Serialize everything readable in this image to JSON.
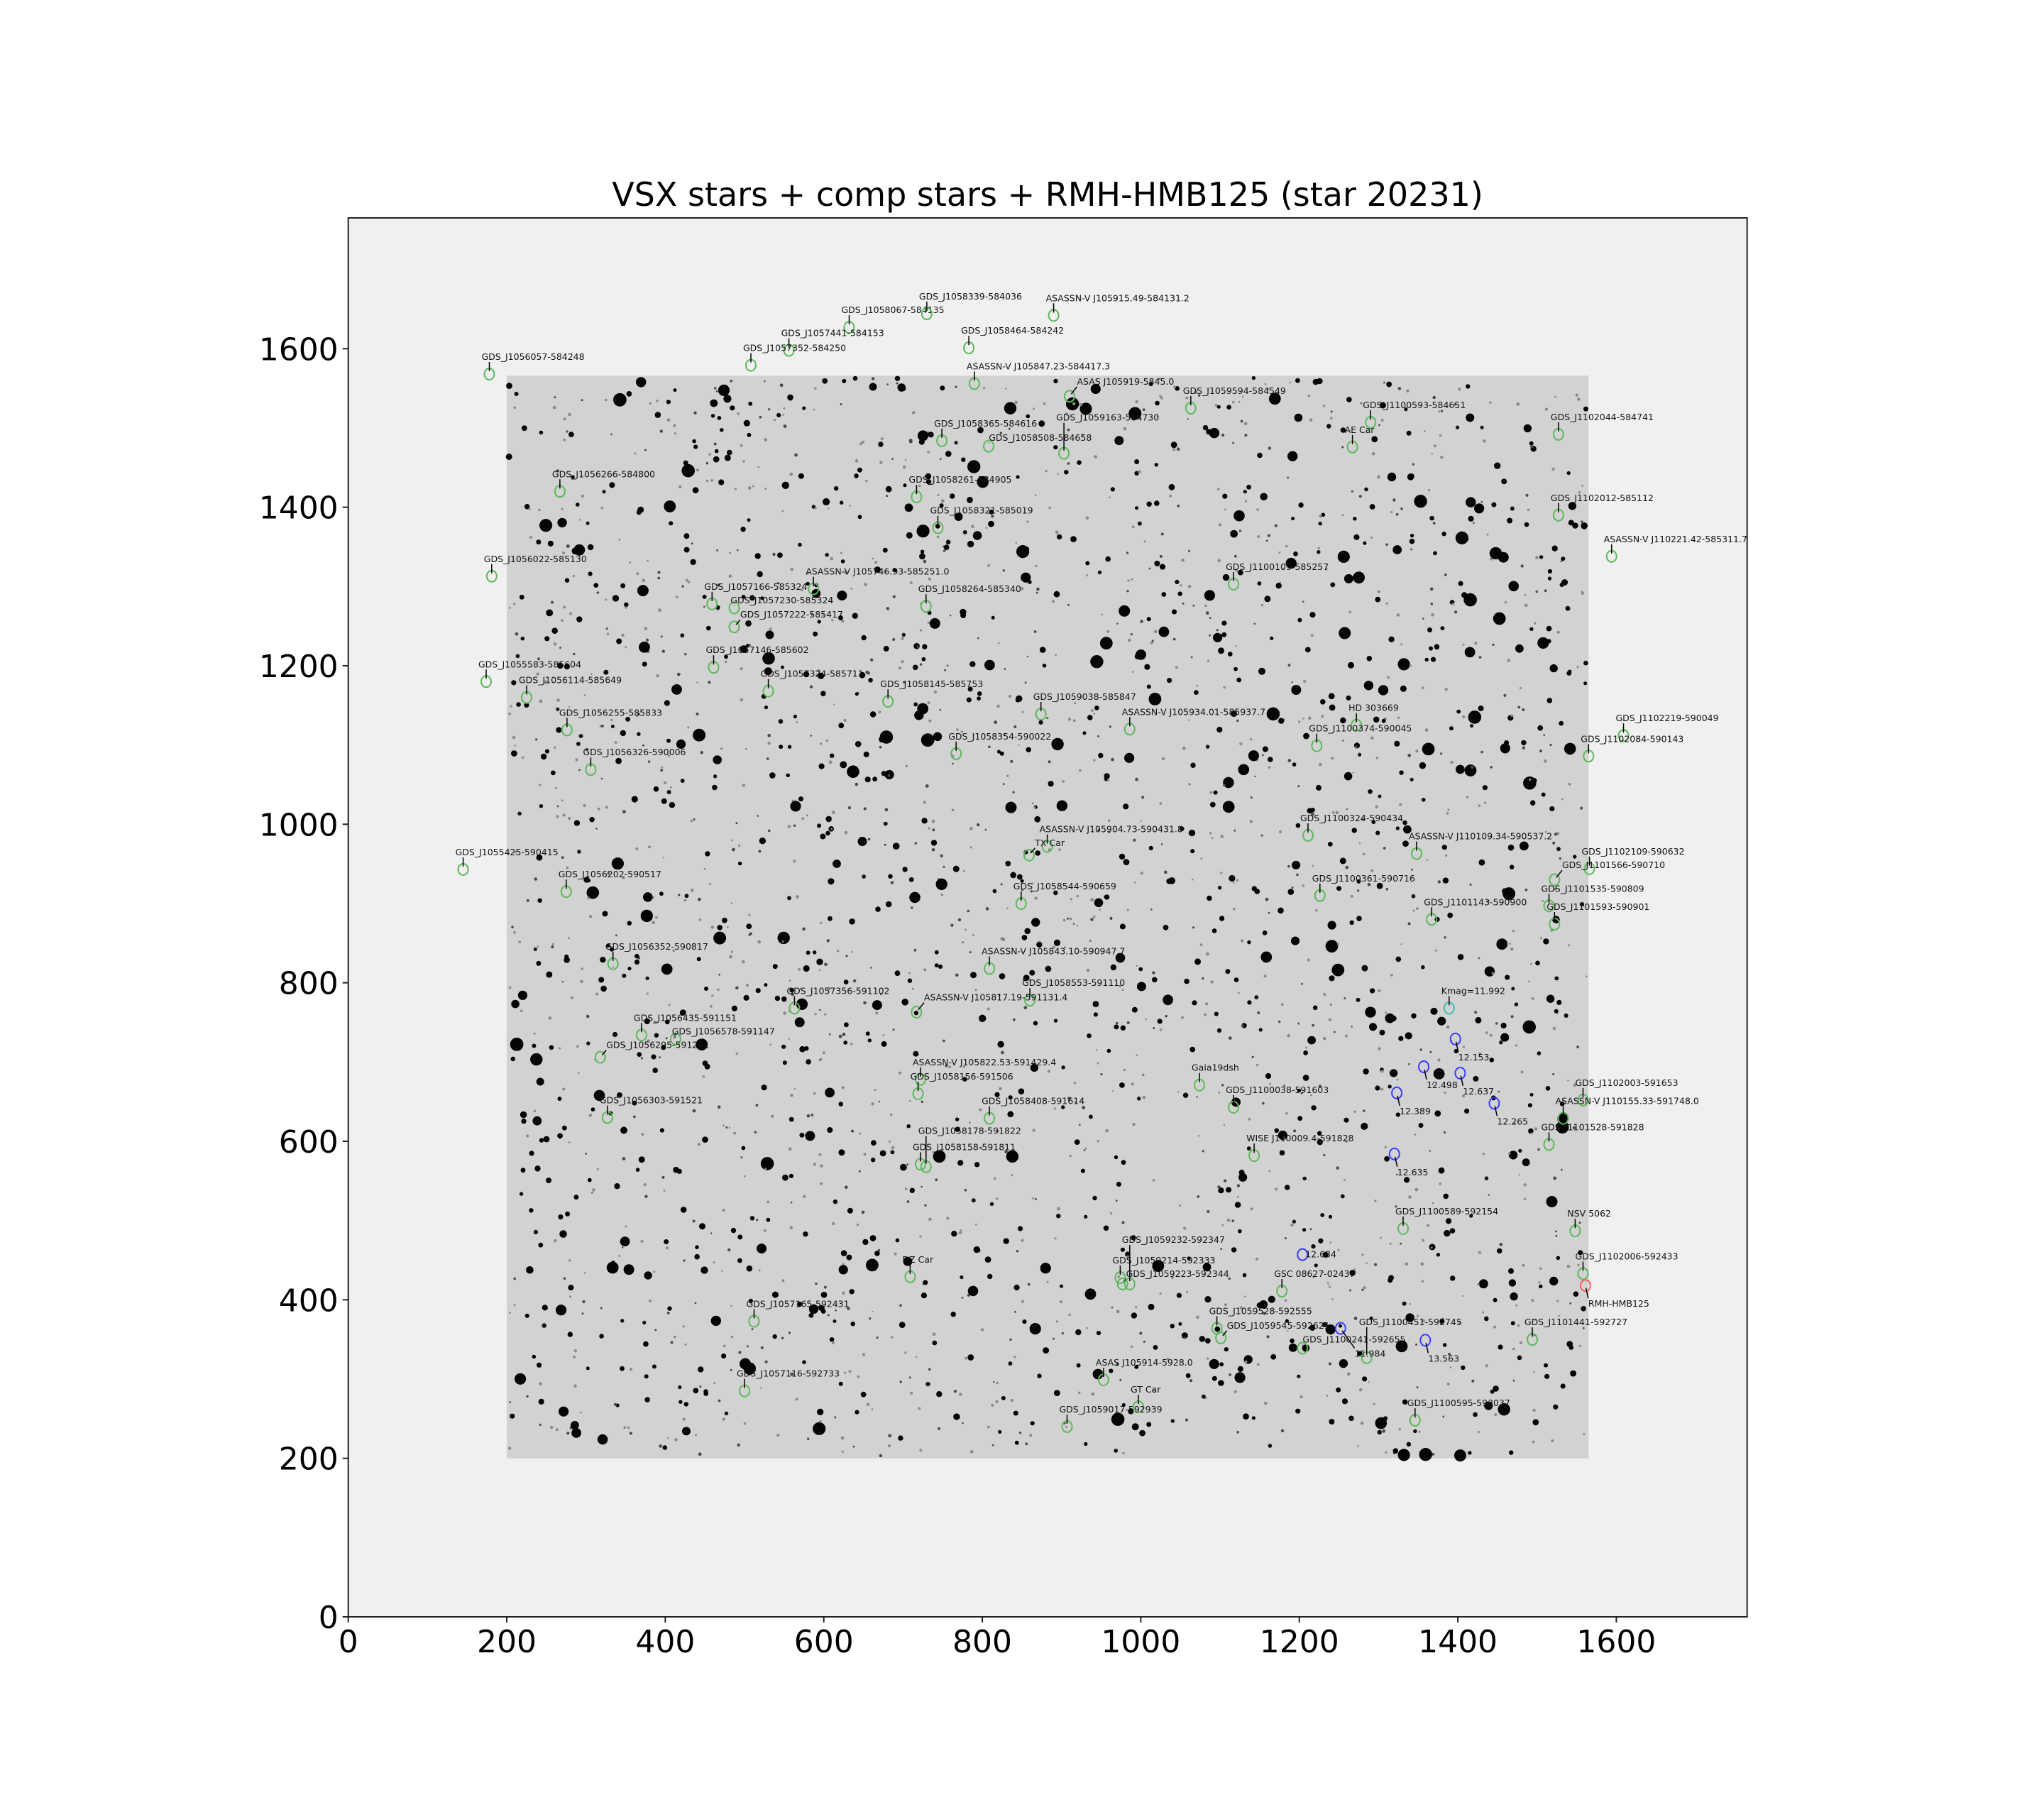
{
  "chart_data": {
    "type": "scatter",
    "title": "VSX stars + comp stars + RMH-HMB125 (star 20231)",
    "xlabel": "",
    "ylabel": "",
    "xlim": [
      0,
      1765
    ],
    "ylim": [
      0,
      1765
    ],
    "xticks": [
      0,
      200,
      400,
      600,
      800,
      1000,
      1200,
      1400,
      1600
    ],
    "yticks": [
      0,
      200,
      400,
      600,
      800,
      1000,
      1200,
      1400,
      1600
    ],
    "grid": false,
    "image_extent": [
      200,
      1565,
      200,
      1566
    ],
    "colors": {
      "vsx": "#5cb85c",
      "comp": "#3b3bff",
      "check": "#3fb8b8",
      "target": "#ff5a5a",
      "axes_bg": "#f0f0f0",
      "image_bg": "#d2d2d2"
    },
    "annotations": [
      {
        "label": "GDS_J1058067-584135",
        "x": 632,
        "y": 1627,
        "kind": "vsx"
      },
      {
        "label": "GDS_J1058339-584036",
        "x": 730,
        "y": 1644,
        "kind": "vsx"
      },
      {
        "label": "ASASSN-V J105915.49-584131.2",
        "x": 890,
        "y": 1642,
        "kind": "vsx"
      },
      {
        "label": "GDS_J1058464-584242",
        "x": 783,
        "y": 1601,
        "kind": "vsx"
      },
      {
        "label": "GDS_J1057441-584153",
        "x": 556,
        "y": 1598,
        "kind": "vsx"
      },
      {
        "label": "GDS_J1057352-584250",
        "x": 508,
        "y": 1579,
        "kind": "vsx"
      },
      {
        "label": "GDS_J1056057-584248",
        "x": 178,
        "y": 1568,
        "kind": "vsx"
      },
      {
        "label": "ASASSN-V J105847.23-584417.3",
        "x": 790,
        "y": 1556,
        "kind": "vsx"
      },
      {
        "label": "ASAS J105919-5845.0",
        "x": 910,
        "y": 1540,
        "kind": "vsx"
      },
      {
        "label": "GDS_J1059594-584549",
        "x": 1063,
        "y": 1525,
        "kind": "vsx"
      },
      {
        "label": "GDS_J1100593-584651",
        "x": 1290,
        "y": 1507,
        "kind": "vsx"
      },
      {
        "label": "GDS_J1102044-584741",
        "x": 1527,
        "y": 1492,
        "kind": "vsx"
      },
      {
        "label": "AE Car",
        "x": 1267,
        "y": 1476,
        "kind": "vsx"
      },
      {
        "label": "GDS_J1058365-584616",
        "x": 749,
        "y": 1484,
        "kind": "vsx"
      },
      {
        "label": "GDS_J1058508-584658",
        "x": 808,
        "y": 1477,
        "kind": "vsx"
      },
      {
        "label": "GDS_J1059163-584730",
        "x": 903,
        "y": 1468,
        "kind": "vsx"
      },
      {
        "label": "GDS_J1056266-584800",
        "x": 267,
        "y": 1420,
        "kind": "vsx"
      },
      {
        "label": "GDS_J1058261-584905",
        "x": 717,
        "y": 1413,
        "kind": "vsx"
      },
      {
        "label": "GDS_J1102012-585112",
        "x": 1527,
        "y": 1390,
        "kind": "vsx"
      },
      {
        "label": "GDS_J1058321-585019",
        "x": 744,
        "y": 1374,
        "kind": "vsx"
      },
      {
        "label": "ASASSN-V J110221.42-585311.7",
        "x": 1594,
        "y": 1338,
        "kind": "vsx"
      },
      {
        "label": "GDS_J1056022-585130",
        "x": 181,
        "y": 1313,
        "kind": "vsx"
      },
      {
        "label": "ASASSN-V J105746.93-585251.0",
        "x": 587,
        "y": 1297,
        "kind": "vsx"
      },
      {
        "label": "GDS_J1100109-585257",
        "x": 1117,
        "y": 1303,
        "kind": "vsx"
      },
      {
        "label": "GDS_J1057166-585324",
        "x": 459,
        "y": 1278,
        "kind": "vsx"
      },
      {
        "label": "GDS_J1057230-585324",
        "x": 487,
        "y": 1273,
        "kind": "vsx"
      },
      {
        "label": "GDS_J1058264-585340",
        "x": 729,
        "y": 1275,
        "kind": "vsx"
      },
      {
        "label": "GDS_J1057222-585417",
        "x": 487,
        "y": 1249,
        "kind": "vsx"
      },
      {
        "label": "GDS_J1057146-585602",
        "x": 461,
        "y": 1198,
        "kind": "vsx"
      },
      {
        "label": "GDS_J1055583-585604",
        "x": 174,
        "y": 1180,
        "kind": "vsx"
      },
      {
        "label": "GDS_J1057324-585711",
        "x": 530,
        "y": 1168,
        "kind": "vsx"
      },
      {
        "label": "GDS_J1056114-585649",
        "x": 225,
        "y": 1160,
        "kind": "vsx"
      },
      {
        "label": "GDS_J1058145-585753",
        "x": 681,
        "y": 1155,
        "kind": "vsx"
      },
      {
        "label": "GDS_J1059038-585847",
        "x": 874,
        "y": 1139,
        "kind": "vsx"
      },
      {
        "label": "ASASSN-V J105934.01-585937.7",
        "x": 986,
        "y": 1120,
        "kind": "vsx"
      },
      {
        "label": "HD 303669",
        "x": 1272,
        "y": 1125,
        "kind": "vsx"
      },
      {
        "label": "GDS_J1056255-585833",
        "x": 276,
        "y": 1119,
        "kind": "vsx"
      },
      {
        "label": "GDS_J1100374-590045",
        "x": 1222,
        "y": 1099,
        "kind": "vsx"
      },
      {
        "label": "GDS_J1102219-590049",
        "x": 1609,
        "y": 1112,
        "kind": "vsx"
      },
      {
        "label": "GDS_J1102084-590143",
        "x": 1565,
        "y": 1086,
        "kind": "vsx"
      },
      {
        "label": "GDS_J1058354-590022",
        "x": 767,
        "y": 1089,
        "kind": "vsx"
      },
      {
        "label": "GDS_J1056326-590006",
        "x": 306,
        "y": 1069,
        "kind": "vsx"
      },
      {
        "label": "GDS_J1100324-590434",
        "x": 1211,
        "y": 986,
        "kind": "vsx"
      },
      {
        "label": "ASASSN-V J105904.73-590431.8",
        "x": 882,
        "y": 972,
        "kind": "vsx"
      },
      {
        "label": "TX Car",
        "x": 859,
        "y": 961,
        "kind": "vsx"
      },
      {
        "label": "ASASSN-V J110109.34-590537.2",
        "x": 1348,
        "y": 963,
        "kind": "vsx"
      },
      {
        "label": "GDS_J1102109-590632",
        "x": 1566,
        "y": 944,
        "kind": "vsx"
      },
      {
        "label": "GDS_J1055425-590415",
        "x": 145,
        "y": 943,
        "kind": "vsx"
      },
      {
        "label": "GDS_J1101566-590710",
        "x": 1522,
        "y": 930,
        "kind": "vsx"
      },
      {
        "label": "GDS_J1056202-590517",
        "x": 275,
        "y": 915,
        "kind": "vsx"
      },
      {
        "label": "GDS_J1100361-590716",
        "x": 1226,
        "y": 910,
        "kind": "vsx"
      },
      {
        "label": "GDS_J1058544-590659",
        "x": 849,
        "y": 900,
        "kind": "vsx"
      },
      {
        "label": "GDS_J1101535-590809",
        "x": 1515,
        "y": 897,
        "kind": "vsx"
      },
      {
        "label": "GDS_J1101143-590900",
        "x": 1367,
        "y": 880,
        "kind": "vsx"
      },
      {
        "label": "GDS_J1101593-590901",
        "x": 1522,
        "y": 874,
        "kind": "vsx"
      },
      {
        "label": "GDS_J1056352-590817",
        "x": 334,
        "y": 824,
        "kind": "vsx"
      },
      {
        "label": "ASASSN-V J105843.10-590947.7",
        "x": 809,
        "y": 818,
        "kind": "vsx"
      },
      {
        "label": "GDS_J1058553-591110",
        "x": 860,
        "y": 778,
        "kind": "vsx"
      },
      {
        "label": "GDS_J1057356-591102",
        "x": 563,
        "y": 768,
        "kind": "vsx"
      },
      {
        "label": "ASASSN-V J105817.19-591131.4",
        "x": 717,
        "y": 763,
        "kind": "vsx"
      },
      {
        "label": "GDS_J1056435-591151",
        "x": 370,
        "y": 734,
        "kind": "vsx"
      },
      {
        "label": "GDS_J1056578-591147",
        "x": 413,
        "y": 729,
        "kind": "vsx"
      },
      {
        "label": "GDS_J1056295-591241",
        "x": 318,
        "y": 706,
        "kind": "vsx"
      },
      {
        "label": "ASASSN-V J105822.53-591429.4",
        "x": 722,
        "y": 678,
        "kind": "vsx"
      },
      {
        "label": "GDS_J1058156-591506",
        "x": 719,
        "y": 660,
        "kind": "vsx"
      },
      {
        "label": "Gaia19dsh",
        "x": 1074,
        "y": 671,
        "kind": "vsx"
      },
      {
        "label": "GDS_J1102003-591653",
        "x": 1558,
        "y": 652,
        "kind": "vsx"
      },
      {
        "label": "GDS_J1100038-591603",
        "x": 1117,
        "y": 643,
        "kind": "vsx"
      },
      {
        "label": "ASASSN-V J110155.33-591748.0",
        "x": 1533,
        "y": 629,
        "kind": "vsx"
      },
      {
        "label": "GDS_J1056303-591521",
        "x": 327,
        "y": 630,
        "kind": "vsx"
      },
      {
        "label": "GDS_J1058408-591614",
        "x": 809,
        "y": 629,
        "kind": "vsx"
      },
      {
        "label": "GDS_J1101528-591828",
        "x": 1515,
        "y": 596,
        "kind": "vsx"
      },
      {
        "label": "WISE J110009.4-591828",
        "x": 1143,
        "y": 582,
        "kind": "vsx"
      },
      {
        "label": "GDS_J1058158-591811",
        "x": 722,
        "y": 571,
        "kind": "vsx"
      },
      {
        "label": "GDS_J1058178-591822",
        "x": 729,
        "y": 568,
        "kind": "vsx"
      },
      {
        "label": "GDS_J1100589-592154",
        "x": 1331,
        "y": 490,
        "kind": "vsx"
      },
      {
        "label": "NSV 5062",
        "x": 1548,
        "y": 487,
        "kind": "vsx"
      },
      {
        "label": "GDS_J1102006-592433",
        "x": 1558,
        "y": 433,
        "kind": "vsx"
      },
      {
        "label": "DZ Car",
        "x": 709,
        "y": 429,
        "kind": "vsx"
      },
      {
        "label": "GDS_J1059214-592333",
        "x": 974,
        "y": 428,
        "kind": "vsx"
      },
      {
        "label": "GDS_J1059223-592344",
        "x": 977,
        "y": 420,
        "kind": "vsx"
      },
      {
        "label": "GDS_J1059232-592347",
        "x": 986,
        "y": 420,
        "kind": "vsx"
      },
      {
        "label": "GSC 08627-02437",
        "x": 1178,
        "y": 411,
        "kind": "vsx"
      },
      {
        "label": "GDS_J1057165-592431",
        "x": 512,
        "y": 373,
        "kind": "vsx"
      },
      {
        "label": "GDS_J1059528-592555",
        "x": 1096,
        "y": 364,
        "kind": "vsx"
      },
      {
        "label": "GDS_J1059545-592621",
        "x": 1101,
        "y": 352,
        "kind": "vsx"
      },
      {
        "label": "GDS_J1101441-592727",
        "x": 1494,
        "y": 350,
        "kind": "vsx"
      },
      {
        "label": "GDS_J1100241-592655",
        "x": 1204,
        "y": 339,
        "kind": "vsx"
      },
      {
        "label": "GDS_J1100451-592745",
        "x": 1285,
        "y": 327,
        "kind": "vsx"
      },
      {
        "label": "ASAS J105914-5928.0",
        "x": 953,
        "y": 299,
        "kind": "vsx"
      },
      {
        "label": "GDS_J1057116-592733",
        "x": 500,
        "y": 285,
        "kind": "vsx"
      },
      {
        "label": "GT Car",
        "x": 997,
        "y": 265,
        "kind": "vsx"
      },
      {
        "label": "GDS_J1059017-592939",
        "x": 907,
        "y": 240,
        "kind": "vsx"
      },
      {
        "label": "GDS_J1100595-593037",
        "x": 1346,
        "y": 248,
        "kind": "vsx"
      },
      {
        "label": "12.153",
        "x": 1397,
        "y": 729,
        "kind": "comp"
      },
      {
        "label": "12.498",
        "x": 1357,
        "y": 694,
        "kind": "comp"
      },
      {
        "label": "12.637",
        "x": 1403,
        "y": 686,
        "kind": "comp"
      },
      {
        "label": "12.389",
        "x": 1323,
        "y": 661,
        "kind": "comp"
      },
      {
        "label": "12.265",
        "x": 1446,
        "y": 648,
        "kind": "comp"
      },
      {
        "label": "12.635",
        "x": 1320,
        "y": 584,
        "kind": "comp"
      },
      {
        "label": "12.634",
        "x": 1204,
        "y": 457,
        "kind": "comp"
      },
      {
        "label": "11.984",
        "x": 1252,
        "y": 364,
        "kind": "comp"
      },
      {
        "label": "13.563",
        "x": 1359,
        "y": 349,
        "kind": "comp"
      },
      {
        "label": "Kmag=11.992",
        "x": 1389,
        "y": 768,
        "kind": "check"
      },
      {
        "label": "RMH-HMB125",
        "x": 1561,
        "y": 418,
        "kind": "target"
      }
    ]
  }
}
